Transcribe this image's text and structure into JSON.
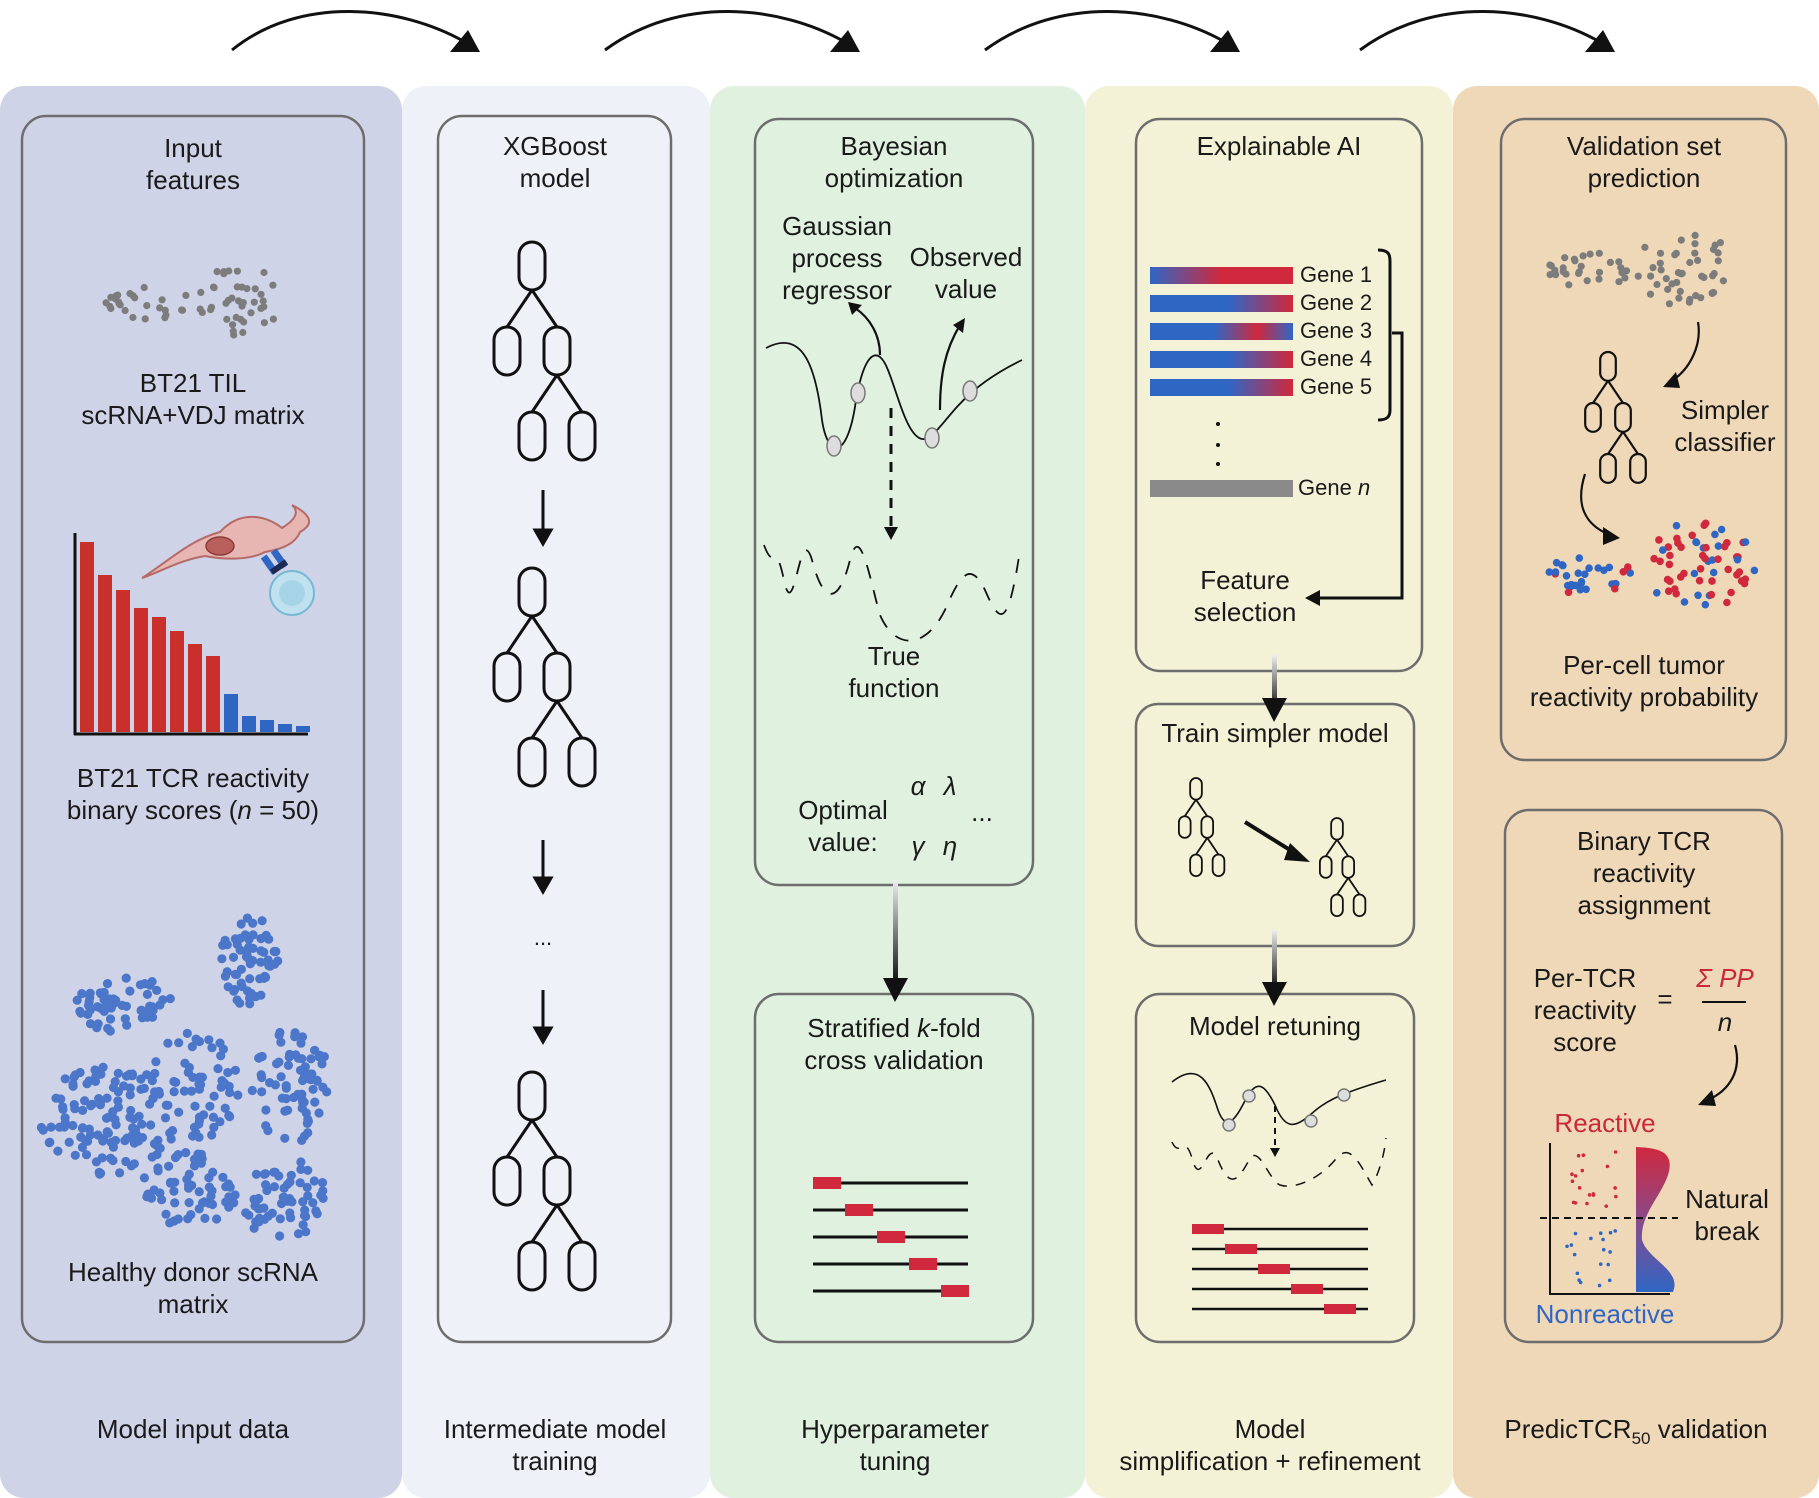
{
  "columns": [
    {
      "footer": "Model input data",
      "color": "#cfd3e7",
      "box_title": [
        "Input",
        "features"
      ],
      "scatter_caption": [
        "BT21 TIL",
        "scRNA+VDJ matrix"
      ],
      "bar_caption_line1": "BT21 TCR reactivity",
      "bar_caption_line2_pre": "binary scores (",
      "bar_caption_n": "n",
      "bar_caption_line2_post": " = 50)",
      "donor_caption": [
        "Healthy donor scRNA",
        "matrix"
      ]
    },
    {
      "footer": [
        "Intermediate model",
        "training"
      ],
      "color": "#eef1f8",
      "box_title": [
        "XGBoost",
        "model"
      ],
      "ellipsis": "..."
    },
    {
      "footer": [
        "Hyperparameter",
        "tuning"
      ],
      "color": "#e0f1df",
      "bayes_title": [
        "Bayesian",
        "optimization"
      ],
      "gp_label": [
        "Gaussian",
        "process",
        "regressor"
      ],
      "observed_label": [
        "Observed",
        "value"
      ],
      "true_function": [
        "True",
        "function"
      ],
      "optimal_label": [
        "Optimal",
        "value:"
      ],
      "params": {
        "alpha": "α",
        "lambda": "λ",
        "gamma": "γ",
        "eta": "η",
        "more": "..."
      },
      "cv_title_pre": "Stratified ",
      "cv_title_k": "k",
      "cv_title_post": "-fold",
      "cv_title_line2": "cross validation"
    },
    {
      "footer": [
        "Model",
        "simplification + refinement"
      ],
      "color": "#f4f2d6",
      "xai_title": "Explainable AI",
      "genes": [
        "Gene 1",
        "Gene 2",
        "Gene 3",
        "Gene 4",
        "Gene 5"
      ],
      "gene_n_pre": "Gene ",
      "gene_n_italic": "n",
      "feature_selection": [
        "Feature",
        "selection"
      ],
      "simpler_title": "Train simpler model",
      "retune_title": "Model retuning"
    },
    {
      "footer_pre": "PredicTCR",
      "footer_sub": "50",
      "footer_post": " validation",
      "color": "#efd8b8",
      "val_title": [
        "Validation set",
        "prediction"
      ],
      "simpler_classifier": [
        "Simpler",
        "classifier"
      ],
      "per_cell": [
        "Per-cell tumor",
        "reactivity probability"
      ],
      "binary_title": [
        "Binary TCR",
        "reactivity",
        "assignment"
      ],
      "per_tcr": [
        "Per-TCR",
        "reactivity",
        "score"
      ],
      "equals": "=",
      "sum_pp": "Σ PP",
      "denominator_n": "n",
      "reactive": "Reactive",
      "natural_break": [
        "Natural",
        "break"
      ],
      "nonreactive": "Nonreactive"
    }
  ],
  "colors": {
    "red": "#d0283d",
    "blue": "#2f66c4",
    "dot_gray": "#7c7c7c",
    "box_border": "#6d6d6d",
    "reactive_text": "#c8283a",
    "nonreactive_text": "#2f66c4"
  }
}
